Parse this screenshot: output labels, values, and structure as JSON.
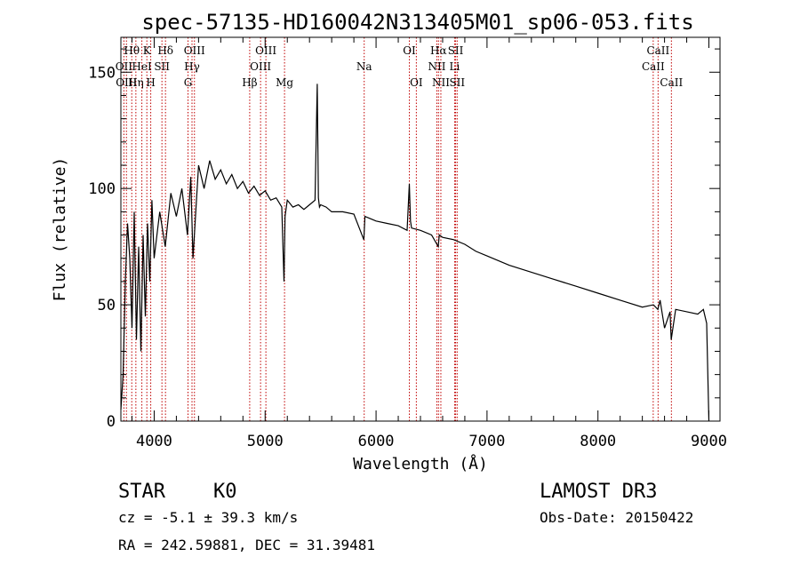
{
  "chart_data": {
    "type": "line",
    "title": "spec-57135-HD160042N313405M01_sp06-053.fits",
    "xlabel": "Wavelength (Å)",
    "ylabel": "Flux (relative)",
    "xlim": [
      3700,
      9100
    ],
    "ylim": [
      0,
      165
    ],
    "xticks": [
      4000,
      5000,
      6000,
      7000,
      8000,
      9000
    ],
    "xtick_labels": [
      "4000",
      "5000",
      "6000",
      "7000",
      "8000",
      "9000"
    ],
    "yticks": [
      0,
      50,
      100,
      150
    ],
    "ytick_labels": [
      "0",
      "50",
      "100",
      "150"
    ],
    "series": [
      {
        "name": "flux",
        "x": [
          3700,
          3720,
          3740,
          3760,
          3780,
          3800,
          3820,
          3840,
          3860,
          3880,
          3900,
          3920,
          3940,
          3960,
          3980,
          4000,
          4050,
          4100,
          4150,
          4200,
          4250,
          4300,
          4330,
          4350,
          4400,
          4450,
          4500,
          4550,
          4600,
          4650,
          4700,
          4750,
          4800,
          4850,
          4900,
          4950,
          5000,
          5050,
          5100,
          5150,
          5170,
          5180,
          5200,
          5250,
          5300,
          5350,
          5400,
          5450,
          5470,
          5480,
          5490,
          5500,
          5550,
          5600,
          5700,
          5800,
          5890,
          5900,
          5950,
          6000,
          6100,
          6200,
          6280,
          6300,
          6310,
          6320,
          6400,
          6500,
          6560,
          6570,
          6600,
          6700,
          6800,
          6900,
          7000,
          7200,
          7400,
          7600,
          7800,
          8000,
          8200,
          8400,
          8500,
          8540,
          8560,
          8600,
          8650,
          8660,
          8700,
          8800,
          8900,
          8950,
          8980,
          8990,
          9000
        ],
        "values": [
          5,
          20,
          60,
          85,
          70,
          40,
          90,
          35,
          75,
          30,
          80,
          45,
          85,
          60,
          95,
          70,
          90,
          75,
          98,
          88,
          100,
          80,
          105,
          70,
          110,
          100,
          112,
          104,
          108,
          102,
          106,
          100,
          103,
          98,
          101,
          97,
          99,
          95,
          96,
          92,
          60,
          88,
          95,
          92,
          93,
          91,
          93,
          95,
          145,
          96,
          92,
          93,
          92,
          90,
          90,
          89,
          78,
          88,
          87,
          86,
          85,
          84,
          82,
          102,
          86,
          83,
          82,
          80,
          75,
          80,
          79,
          78,
          76,
          73,
          71,
          67,
          64,
          61,
          58,
          55,
          52,
          49,
          50,
          48,
          52,
          40,
          47,
          35,
          48,
          47,
          46,
          48,
          42,
          20,
          0
        ]
      }
    ],
    "lines": [
      {
        "label": "Hθ",
        "x": 3798,
        "row": 1
      },
      {
        "label": "OII",
        "x": 3727,
        "row": 2
      },
      {
        "label": "OIII",
        "x": 3750,
        "row": 3
      },
      {
        "label": "Hη",
        "x": 3835,
        "row": 3
      },
      {
        "label": "HeI",
        "x": 3889,
        "row": 2
      },
      {
        "label": "K",
        "x": 3934,
        "row": 1
      },
      {
        "label": "H",
        "x": 3969,
        "row": 3
      },
      {
        "label": "SII",
        "x": 4070,
        "row": 2
      },
      {
        "label": "Hδ",
        "x": 4102,
        "row": 1
      },
      {
        "label": "OIII",
        "x": 4363,
        "row": 1
      },
      {
        "label": "Hγ",
        "x": 4341,
        "row": 2
      },
      {
        "label": "G",
        "x": 4305,
        "row": 3
      },
      {
        "label": "Hβ",
        "x": 4861,
        "row": 3
      },
      {
        "label": "OIII",
        "x": 5007,
        "row": 1
      },
      {
        "label": "OIII",
        "x": 4959,
        "row": 2
      },
      {
        "label": "Mg",
        "x": 5175,
        "row": 3
      },
      {
        "label": "Na",
        "x": 5893,
        "row": 2
      },
      {
        "label": "OI",
        "x": 6300,
        "row": 1
      },
      {
        "label": "OI",
        "x": 6363,
        "row": 3
      },
      {
        "label": "Hα",
        "x": 6563,
        "row": 1
      },
      {
        "label": "NII",
        "x": 6548,
        "row": 2
      },
      {
        "label": "NII",
        "x": 6584,
        "row": 3
      },
      {
        "label": "SII",
        "x": 6717,
        "row": 1
      },
      {
        "label": "Li",
        "x": 6708,
        "row": 2
      },
      {
        "label": "SII",
        "x": 6731,
        "row": 3
      },
      {
        "label": "CaII",
        "x": 8542,
        "row": 1
      },
      {
        "label": "CaII",
        "x": 8498,
        "row": 2
      },
      {
        "label": "CaII",
        "x": 8662,
        "row": 3
      }
    ]
  },
  "info": {
    "class": "STAR",
    "subclass": "K0",
    "survey": "LAMOST DR3",
    "cz": "cz = -5.1 ± 39.3 km/s",
    "obs_date": "Obs-Date: 20150422",
    "coords": "RA = 242.59881, DEC =  31.39481"
  }
}
